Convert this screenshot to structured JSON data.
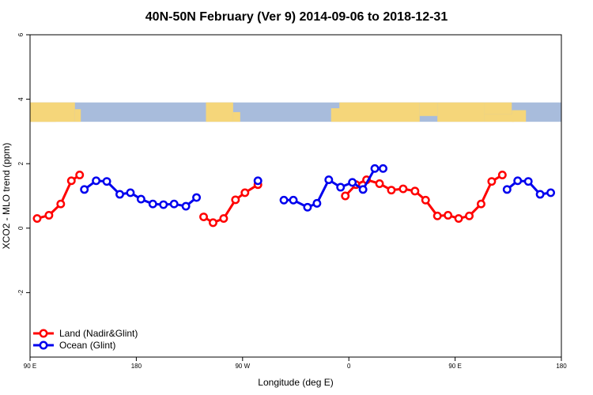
{
  "chart_data": {
    "type": "line",
    "title": "40N-50N February (Ver 9)   2014-09-06 to 2018-12-31",
    "xlabel": "Longitude (deg E)",
    "ylabel": "XCO2 - MLO trend (ppm)",
    "x_ticks": [
      {
        "value": 90,
        "label": "90 E"
      },
      {
        "value": 180,
        "label": "180"
      },
      {
        "value": 270,
        "label": "90 W"
      },
      {
        "value": 360,
        "label": "0"
      },
      {
        "value": 450,
        "label": "90 E"
      },
      {
        "value": 540,
        "label": "180"
      }
    ],
    "y_ticks": [
      {
        "value": -2,
        "label": "-2"
      },
      {
        "value": 0,
        "label": "0"
      },
      {
        "value": 2,
        "label": "2"
      },
      {
        "value": 4,
        "label": "4"
      },
      {
        "value": 6,
        "label": "6"
      }
    ],
    "xlim": [
      90,
      540
    ],
    "ylim": [
      -4,
      6
    ],
    "grid": false,
    "legend_position": "bottom-left",
    "map_strip": {
      "y_range": [
        3.3,
        3.9
      ],
      "land_color": "#f5d67a",
      "ocean_color": "#a8bcdc"
    },
    "series": [
      {
        "name": "Land (Nadir&Glint)",
        "color": "#ff0000",
        "segments": [
          [
            [
              96,
              0.3
            ],
            [
              106,
              0.4
            ],
            [
              116,
              0.75
            ],
            [
              125,
              1.47
            ],
            [
              132,
              1.65
            ]
          ],
          [
            [
              237,
              0.35
            ],
            [
              245,
              0.17
            ],
            [
              254,
              0.3
            ],
            [
              264,
              0.88
            ],
            [
              272,
              1.1
            ],
            [
              283,
              1.35
            ]
          ],
          [
            [
              357,
              1.0
            ],
            [
              366,
              1.35
            ],
            [
              375,
              1.5
            ],
            [
              386,
              1.38
            ],
            [
              396,
              1.18
            ],
            [
              406,
              1.22
            ],
            [
              416,
              1.15
            ],
            [
              425,
              0.87
            ],
            [
              435,
              0.38
            ],
            [
              444,
              0.4
            ],
            [
              453,
              0.3
            ],
            [
              462,
              0.38
            ],
            [
              472,
              0.75
            ],
            [
              481,
              1.45
            ],
            [
              490,
              1.65
            ]
          ]
        ]
      },
      {
        "name": "Ocean (Glint)",
        "color": "#0000ee",
        "segments": [
          [
            [
              136,
              1.2
            ],
            [
              146,
              1.47
            ],
            [
              155,
              1.45
            ],
            [
              166,
              1.05
            ],
            [
              175,
              1.1
            ],
            [
              184,
              0.9
            ],
            [
              194,
              0.75
            ],
            [
              203,
              0.73
            ],
            [
              212,
              0.75
            ],
            [
              222,
              0.68
            ],
            [
              231,
              0.95
            ]
          ],
          [
            [
              283,
              1.47
            ]
          ],
          [
            [
              305,
              0.87
            ],
            [
              313,
              0.87
            ],
            [
              325,
              0.65
            ],
            [
              333,
              0.77
            ],
            [
              343,
              1.5
            ],
            [
              353,
              1.27
            ],
            [
              363,
              1.42
            ],
            [
              372,
              1.2
            ],
            [
              382,
              1.85
            ],
            [
              389,
              1.85
            ]
          ],
          [
            [
              494,
              1.2
            ],
            [
              503,
              1.47
            ],
            [
              512,
              1.45
            ],
            [
              522,
              1.05
            ],
            [
              531,
              1.1
            ]
          ]
        ]
      }
    ]
  }
}
